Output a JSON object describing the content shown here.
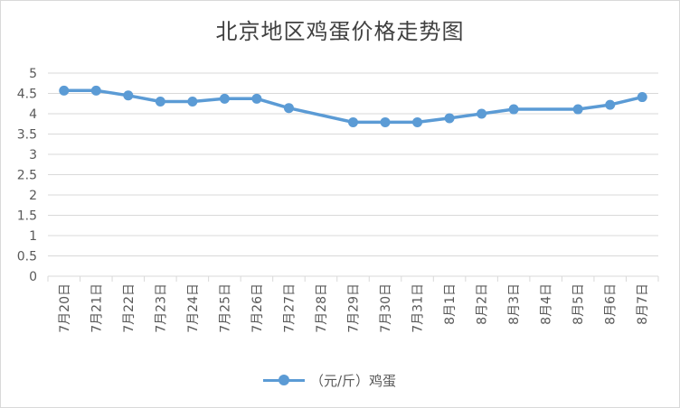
{
  "chart_data": {
    "type": "line",
    "title": "北京地区鸡蛋价格走势图",
    "xlabel": "",
    "ylabel": "",
    "categories": [
      "7月20日",
      "7月21日",
      "7月22日",
      "7月23日",
      "7月24日",
      "7月25日",
      "7月26日",
      "7月27日",
      "7月28日",
      "7月29日",
      "7月30日",
      "7月31日",
      "8月1日",
      "8月2日",
      "8月3日",
      "8月4日",
      "8月5日",
      "8月6日",
      "8月7日"
    ],
    "series": [
      {
        "name": "（元/斤）鸡蛋",
        "values": [
          4.57,
          4.57,
          4.45,
          4.3,
          4.3,
          4.37,
          4.37,
          4.14,
          null,
          3.79,
          3.79,
          3.79,
          3.89,
          4.0,
          4.11,
          null,
          4.11,
          4.22,
          4.41
        ],
        "color": "#5b9bd5"
      }
    ],
    "ylim": [
      0,
      5
    ],
    "yticks": [
      "0",
      "0.5",
      "1",
      "1.5",
      "2",
      "2.5",
      "3",
      "3.5",
      "4",
      "4.5",
      "5"
    ],
    "grid": true,
    "legend_position": "bottom"
  }
}
